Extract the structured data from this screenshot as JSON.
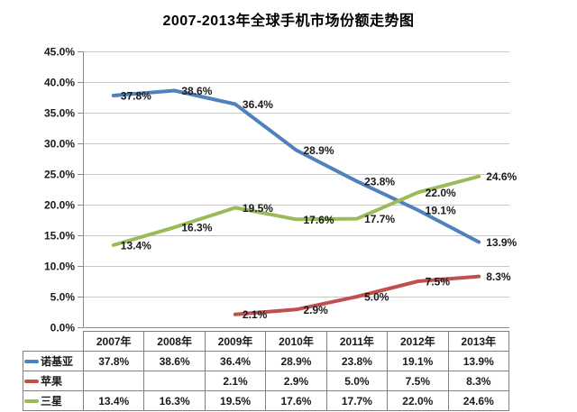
{
  "title": "2007-2013年全球手机市场份额走势图",
  "chart_data": {
    "type": "line",
    "title": "2007-2013年全球手机市场份额走势图",
    "categories": [
      "2007年",
      "2008年",
      "2009年",
      "2010年",
      "2011年",
      "2012年",
      "2013年"
    ],
    "series": [
      {
        "name": "诺基亚",
        "color": "#4F81BD",
        "values": [
          37.8,
          38.6,
          36.4,
          28.9,
          23.8,
          19.1,
          13.9
        ],
        "labels": [
          "37.8%",
          "38.6%",
          "36.4%",
          "28.9%",
          "23.8%",
          "19.1%",
          "13.9%"
        ]
      },
      {
        "name": "苹果",
        "color": "#C0504D",
        "values": [
          null,
          null,
          2.1,
          2.9,
          5.0,
          7.5,
          8.3
        ],
        "labels": [
          "",
          "",
          "2.1%",
          "2.9%",
          "5.0%",
          "7.5%",
          "8.3%"
        ]
      },
      {
        "name": "三星",
        "color": "#9BBB59",
        "values": [
          13.4,
          16.3,
          19.5,
          17.6,
          17.7,
          22.0,
          24.6
        ],
        "labels": [
          "13.4%",
          "16.3%",
          "19.5%",
          "17.6%",
          "17.7%",
          "22.0%",
          "24.6%"
        ]
      }
    ],
    "ylim": [
      0,
      45
    ],
    "ytick_step": 5,
    "ytick_labels": [
      "0.0%",
      "5.0%",
      "10.0%",
      "15.0%",
      "20.0%",
      "25.0%",
      "30.0%",
      "35.0%",
      "40.0%",
      "45.0%"
    ],
    "grid": true,
    "legend_position": "data-table-left",
    "data_table_shown": true
  },
  "colors": {
    "gridline": "#C8C8C8",
    "axis": "#8C8C8C",
    "table_border": "#7F7F7F",
    "label_text": "#1A1A1A"
  }
}
